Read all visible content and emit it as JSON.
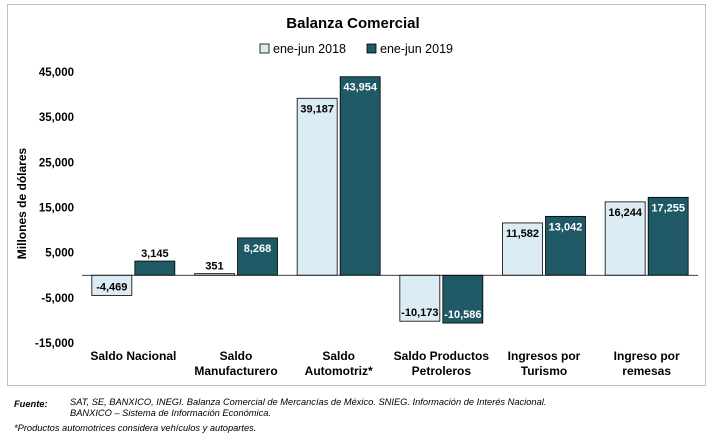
{
  "chart_data": {
    "type": "bar",
    "title": "Balanza Comercial",
    "ylabel": "Millones de dólares",
    "xlabel": "",
    "ylim": [
      -15000,
      45000
    ],
    "yticks": [
      45000,
      35000,
      25000,
      15000,
      5000,
      -5000,
      -15000
    ],
    "ytick_labels": [
      "45,000",
      "35,000",
      "25,000",
      "15,000",
      "5,000",
      "-5,000",
      "-15,000"
    ],
    "categories": [
      [
        "Saldo Nacional"
      ],
      [
        "Saldo",
        "Manufacturero"
      ],
      [
        "Saldo",
        "Automotriz*"
      ],
      [
        "Saldo Productos",
        "Petroleros"
      ],
      [
        "Ingresos por",
        "Turismo"
      ],
      [
        "Ingreso por",
        "remesas"
      ]
    ],
    "series": [
      {
        "name": "ene-jun 2018",
        "color": "#dcecf4",
        "values": [
          -4469,
          351,
          39187,
          -10173,
          11582,
          16244
        ],
        "labels": [
          "-4,469",
          "351",
          "39,187",
          "-10,173",
          "11,582",
          "16,244"
        ]
      },
      {
        "name": "ene-jun 2019",
        "color": "#1f5966",
        "values": [
          3145,
          8268,
          43954,
          -10586,
          13042,
          17255
        ],
        "labels": [
          "3,145",
          "8,268",
          "43,954",
          "-10,586",
          "13,042",
          "17,255"
        ]
      }
    ],
    "legend": "top-center",
    "grid": false
  },
  "notes": {
    "source_label": "Fuente:",
    "source_line1": "SAT, SE, BANXICO, INEGI. Balanza Comercial de Mercancías de México. SNIEG. Información de Interés Nacional.",
    "source_line2": "BANXICO – Sistema de Información Económica.",
    "footnote": "*Productos automotrices considera vehículos y autopartes."
  }
}
